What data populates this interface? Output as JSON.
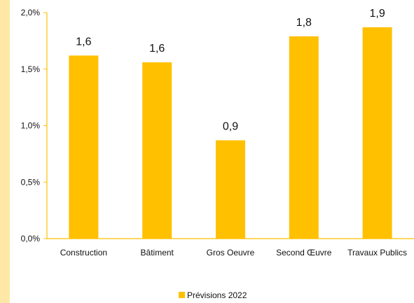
{
  "colors": {
    "bar": "#ffc000",
    "axis": "#ffc000",
    "band": "#ffe8a6"
  },
  "chart_data": {
    "type": "bar",
    "title": "",
    "xlabel": "",
    "ylabel": "",
    "ylim": [
      0,
      2.0
    ],
    "y_ticks": [
      {
        "value": 0.0,
        "label": "0,0%"
      },
      {
        "value": 0.5,
        "label": "0,5%"
      },
      {
        "value": 1.0,
        "label": "1,0%"
      },
      {
        "value": 1.5,
        "label": "1,5%"
      },
      {
        "value": 2.0,
        "label": "2,0%"
      }
    ],
    "grid": false,
    "legend_position": "bottom",
    "categories": [
      "Construction",
      "Bâtiment",
      "Gros Oeuvre",
      "Second Œuvre",
      "Travaux Publics"
    ],
    "series": [
      {
        "name": "Prévisions 2022",
        "values": [
          1.62,
          1.56,
          0.87,
          1.79,
          1.87
        ],
        "data_labels": [
          "1,6",
          "1,6",
          "0,9",
          "1,8",
          "1,9"
        ]
      }
    ]
  }
}
